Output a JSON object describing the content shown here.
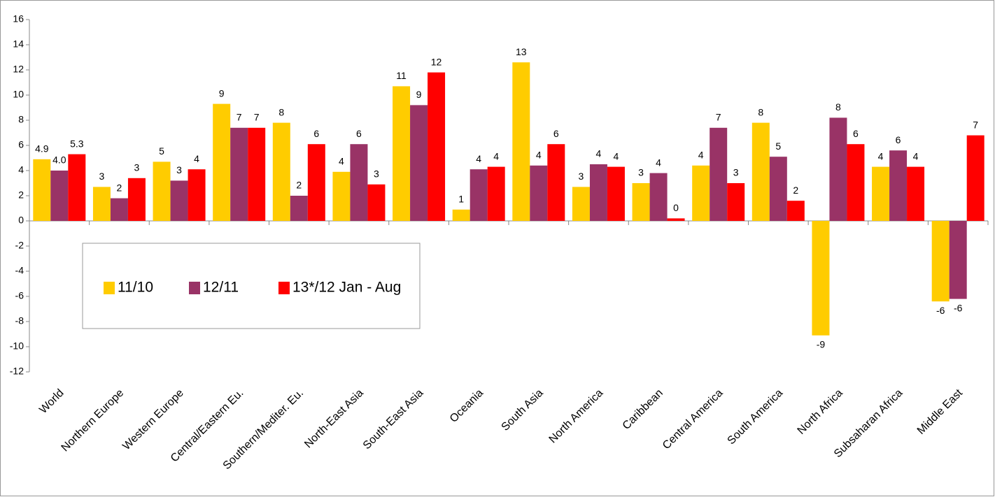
{
  "chart_data": {
    "type": "bar",
    "categories": [
      "World",
      "Northern Europe",
      "Western Europe",
      "Central/Eastern Eu.",
      "Southern/Mediter. Eu.",
      "North-East Asia",
      "South-East Asia",
      "Oceania",
      "South Asia",
      "North America",
      "Caribbean",
      "Central America",
      "South America",
      "North Africa",
      "Subsaharan Africa",
      "Middle East"
    ],
    "series": [
      {
        "name": "11/10",
        "color": "#ffcc00",
        "values": [
          4.9,
          2.7,
          4.7,
          9.3,
          7.8,
          3.9,
          10.7,
          0.9,
          12.6,
          2.7,
          3.0,
          4.4,
          7.8,
          -9.1,
          4.3,
          -6.4
        ],
        "value_labels": [
          "4.9",
          "3",
          "5",
          "9",
          "8",
          "4",
          "11",
          "1",
          "13",
          "3",
          "3",
          "4",
          "8",
          "-9",
          "4",
          "-6"
        ]
      },
      {
        "name": "12/11",
        "color": "#993366",
        "values": [
          4.0,
          1.8,
          3.2,
          7.4,
          2.0,
          6.1,
          9.2,
          4.1,
          4.4,
          4.5,
          3.8,
          7.4,
          5.1,
          8.2,
          5.6,
          -6.2
        ],
        "value_labels": [
          "4.0",
          "2",
          "3",
          "7",
          "2",
          "6",
          "9",
          "4",
          "4",
          "4",
          "4",
          "7",
          "5",
          "8",
          "6",
          "-6"
        ]
      },
      {
        "name": "13*/12 Jan - Aug",
        "color": "#ff0000",
        "values": [
          5.3,
          3.4,
          4.1,
          7.4,
          6.1,
          2.9,
          11.8,
          4.3,
          6.1,
          4.3,
          0.2,
          3.0,
          1.6,
          6.1,
          4.3,
          6.8
        ],
        "value_labels": [
          "5.3",
          "3",
          "4",
          "7",
          "6",
          "3",
          "12",
          "4",
          "6",
          "4",
          "0",
          "3",
          "2",
          "6",
          "4",
          "7"
        ]
      }
    ],
    "ylim": [
      -12,
      16
    ],
    "yticks": [
      -12,
      -10,
      -8,
      -6,
      -4,
      -2,
      0,
      2,
      4,
      6,
      8,
      10,
      12,
      14,
      16
    ],
    "grid": false,
    "legend": "lower left"
  }
}
